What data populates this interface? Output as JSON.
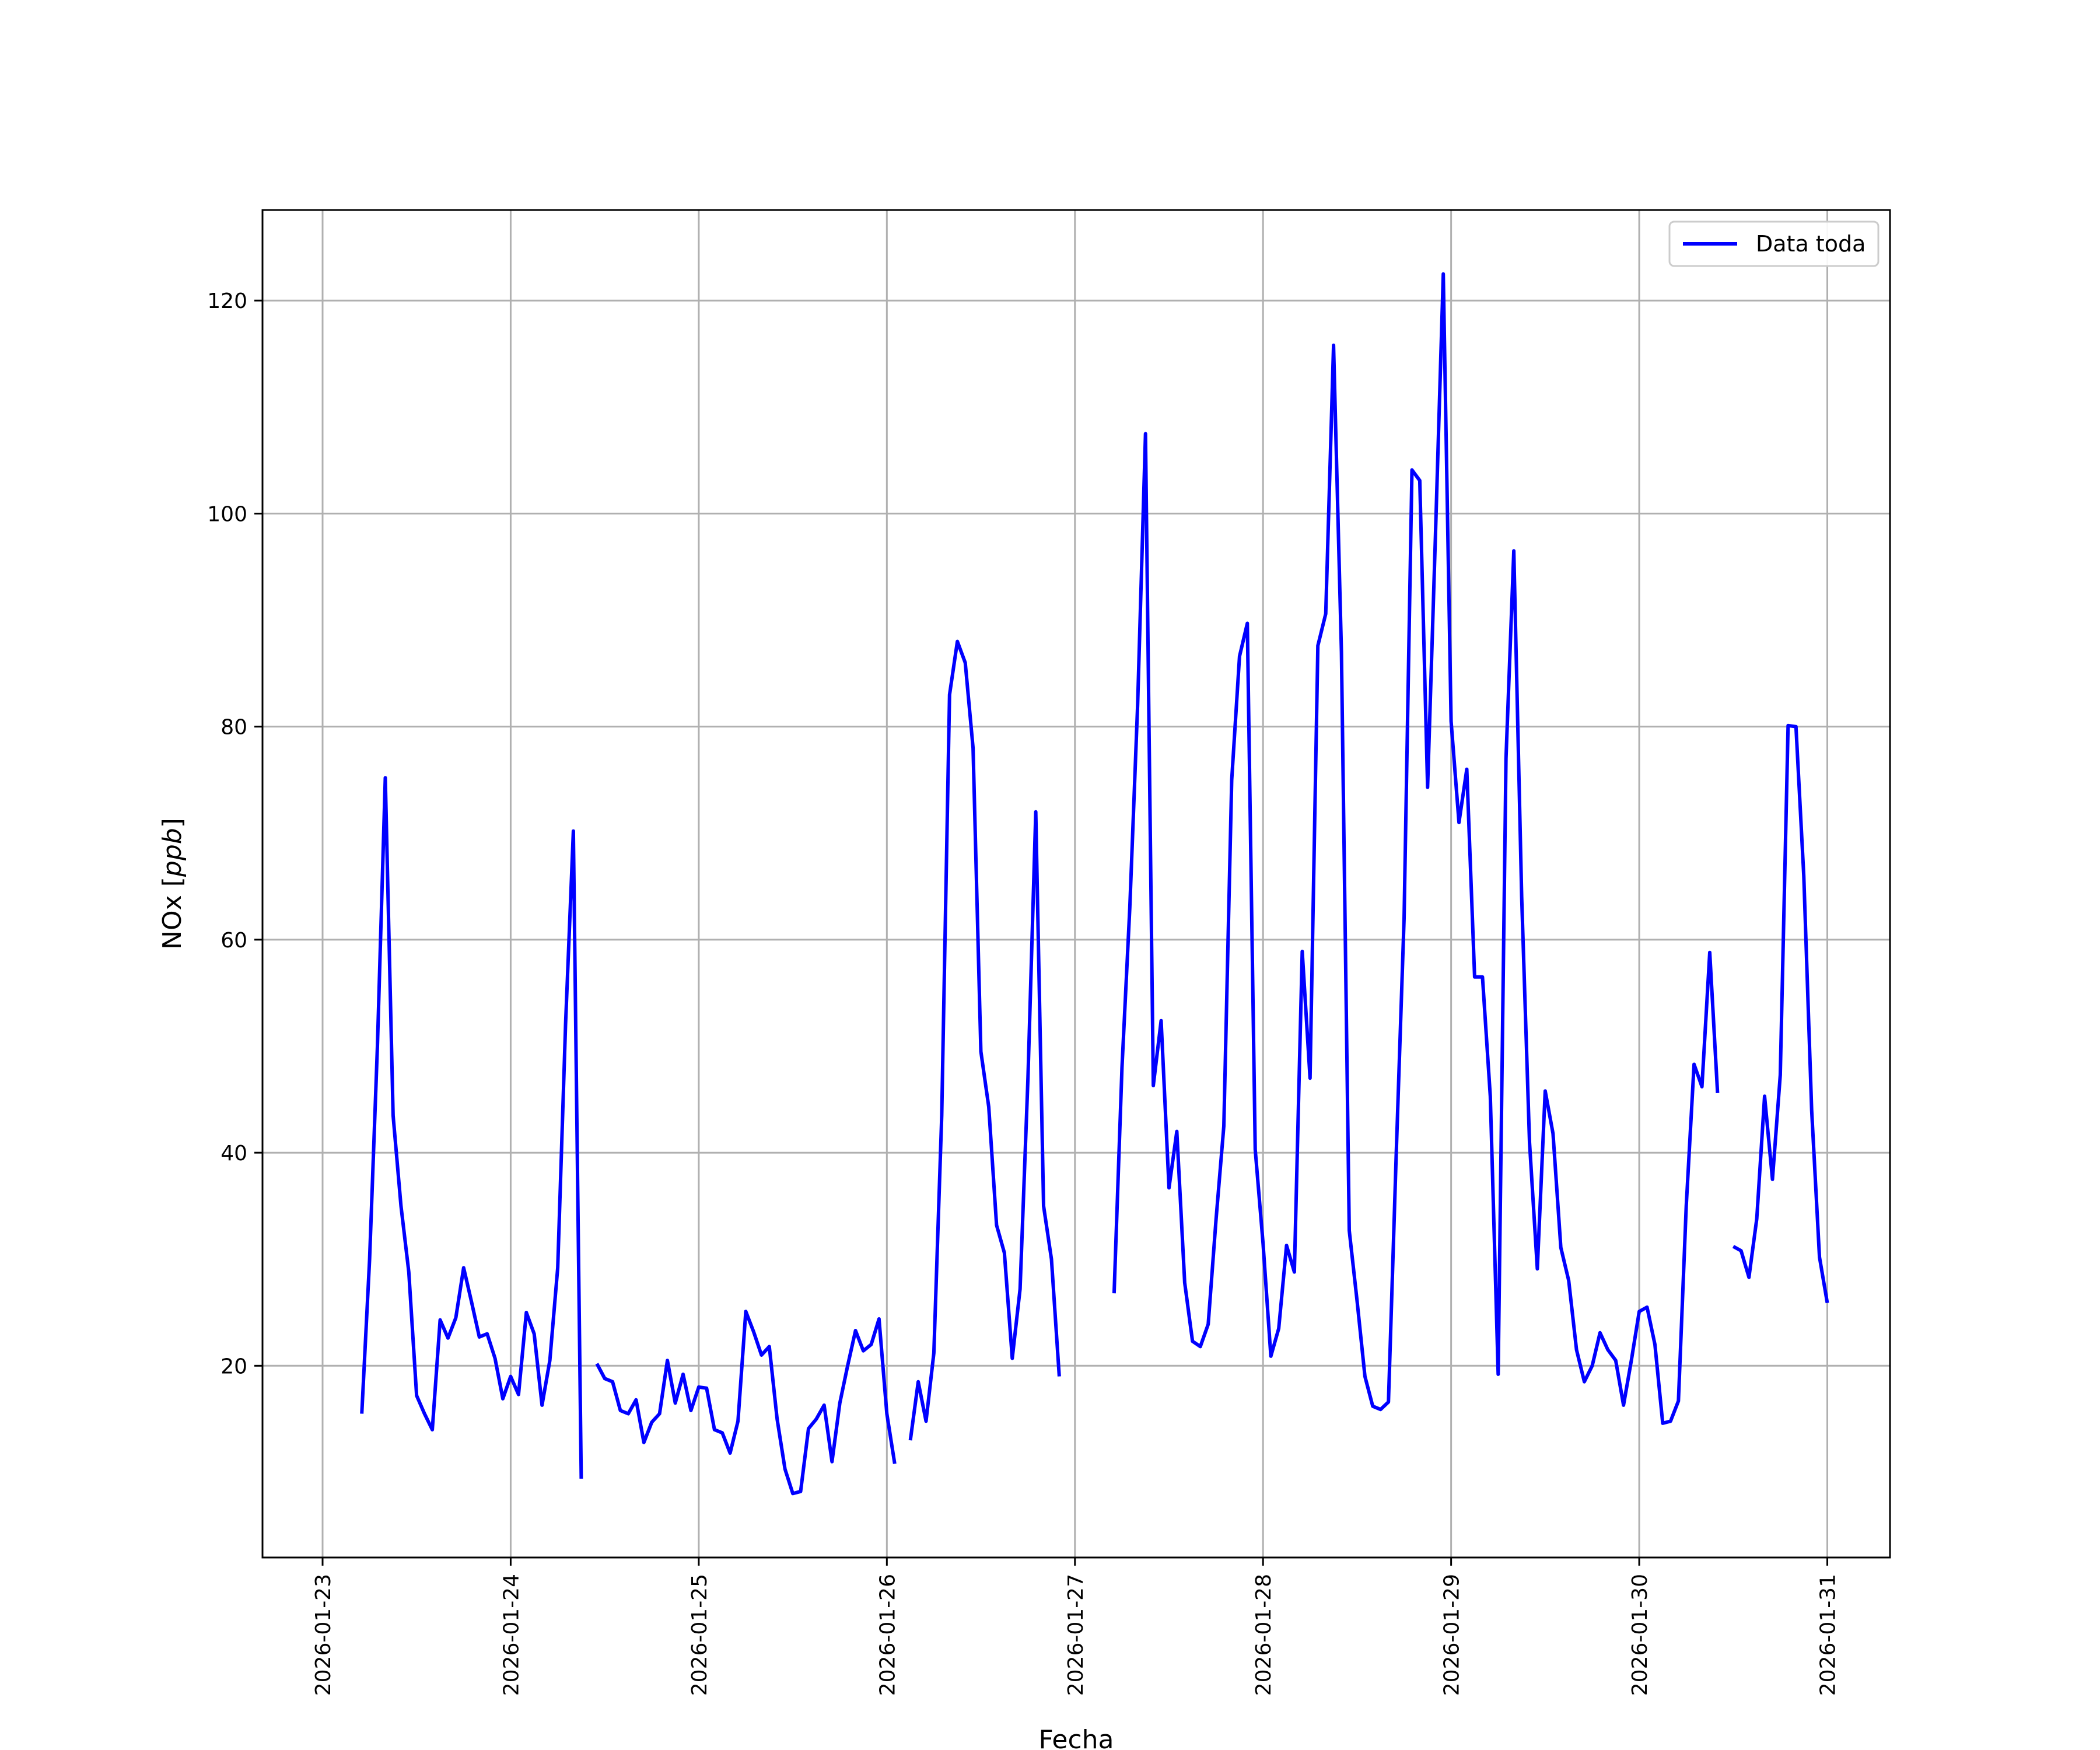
{
  "chart_data": {
    "type": "line",
    "title": "",
    "xlabel": "Fecha",
    "ylabel": "NOx [ppb]",
    "ylabel_parts": {
      "text": "NOx ",
      "bracket_open": "[",
      "unit": "ppb",
      "bracket_close": "]"
    },
    "x_type": "datetime",
    "xlim": [
      "2026-01-22 16:20",
      "2026-01-31 08:00"
    ],
    "ylim": [
      2,
      128.5
    ],
    "x_ticks": [
      "2026-01-23",
      "2026-01-24",
      "2026-01-25",
      "2026-01-26",
      "2026-01-27",
      "2026-01-28",
      "2026-01-29",
      "2026-01-30",
      "2026-01-31"
    ],
    "y_ticks": [
      20,
      40,
      60,
      80,
      100,
      120
    ],
    "grid": true,
    "legend_position": "upper right",
    "series": [
      {
        "name": "Data toda",
        "color": "#0000ff",
        "segments": [
          [
            [
              "2026-01-23 05:00",
              15.5
            ],
            [
              "2026-01-23 06:00",
              30
            ],
            [
              "2026-01-23 07:00",
              50
            ],
            [
              "2026-01-23 08:00",
              75.2
            ],
            [
              "2026-01-23 09:00",
              43.5
            ],
            [
              "2026-01-23 10:00",
              35
            ],
            [
              "2026-01-23 11:00",
              28.8
            ],
            [
              "2026-01-23 12:00",
              17.2
            ],
            [
              "2026-01-23 13:00",
              15.5
            ],
            [
              "2026-01-23 14:00",
              14
            ],
            [
              "2026-01-23 15:00",
              24.3
            ],
            [
              "2026-01-23 16:00",
              22.6
            ],
            [
              "2026-01-23 17:00",
              24.5
            ],
            [
              "2026-01-23 18:00",
              29.2
            ],
            [
              "2026-01-23 19:00",
              26
            ],
            [
              "2026-01-23 20:00",
              22.7
            ],
            [
              "2026-01-23 21:00",
              23
            ],
            [
              "2026-01-23 22:00",
              20.7
            ],
            [
              "2026-01-23 23:00",
              16.9
            ],
            [
              "2026-01-24 00:00",
              19
            ],
            [
              "2026-01-24 01:00",
              17.3
            ],
            [
              "2026-01-24 02:00",
              25
            ],
            [
              "2026-01-24 03:00",
              23
            ],
            [
              "2026-01-24 04:00",
              16.3
            ],
            [
              "2026-01-24 05:00",
              20.5
            ],
            [
              "2026-01-24 06:00",
              29.2
            ],
            [
              "2026-01-24 07:00",
              52
            ],
            [
              "2026-01-24 08:00",
              70.2
            ],
            [
              "2026-01-24 09:00",
              9.4
            ]
          ],
          [
            [
              "2026-01-24 11:00",
              20.2
            ],
            [
              "2026-01-24 12:00",
              18.8
            ],
            [
              "2026-01-24 13:00",
              18.5
            ],
            [
              "2026-01-24 14:00",
              15.8
            ],
            [
              "2026-01-24 15:00",
              15.5
            ],
            [
              "2026-01-24 16:00",
              16.8
            ],
            [
              "2026-01-24 17:00",
              12.8
            ],
            [
              "2026-01-24 18:00",
              14.7
            ],
            [
              "2026-01-24 19:00",
              15.5
            ],
            [
              "2026-01-24 20:00",
              20.5
            ],
            [
              "2026-01-24 21:00",
              16.5
            ],
            [
              "2026-01-24 22:00",
              19.2
            ],
            [
              "2026-01-24 23:00",
              15.8
            ],
            [
              "2026-01-25 00:00",
              18
            ],
            [
              "2026-01-25 01:00",
              17.9
            ],
            [
              "2026-01-25 02:00",
              14
            ],
            [
              "2026-01-25 03:00",
              13.7
            ],
            [
              "2026-01-25 04:00",
              11.8
            ],
            [
              "2026-01-25 05:00",
              14.8
            ],
            [
              "2026-01-25 06:00",
              25.1
            ],
            [
              "2026-01-25 07:00",
              23.2
            ],
            [
              "2026-01-25 08:00",
              21
            ],
            [
              "2026-01-25 09:00",
              21.8
            ],
            [
              "2026-01-25 10:00",
              15
            ],
            [
              "2026-01-25 11:00",
              10.3
            ],
            [
              "2026-01-25 12:00",
              8
            ],
            [
              "2026-01-25 13:00",
              8.2
            ],
            [
              "2026-01-25 14:00",
              14.1
            ],
            [
              "2026-01-25 15:00",
              15
            ],
            [
              "2026-01-25 16:00",
              16.3
            ],
            [
              "2026-01-25 17:00",
              11
            ],
            [
              "2026-01-25 18:00",
              16.5
            ],
            [
              "2026-01-25 19:00",
              20
            ],
            [
              "2026-01-25 20:00",
              23.3
            ],
            [
              "2026-01-25 21:00",
              21.4
            ],
            [
              "2026-01-25 22:00",
              22
            ],
            [
              "2026-01-25 23:00",
              24.4
            ],
            [
              "2026-01-26 00:00",
              15.5
            ],
            [
              "2026-01-26 01:00",
              10.8
            ]
          ],
          [
            [
              "2026-01-26 03:00",
              13
            ],
            [
              "2026-01-26 04:00",
              18.5
            ],
            [
              "2026-01-26 05:00",
              14.8
            ],
            [
              "2026-01-26 06:00",
              21.2
            ],
            [
              "2026-01-26 07:00",
              43.5
            ],
            [
              "2026-01-26 08:00",
              83
            ],
            [
              "2026-01-26 09:00",
              88
            ],
            [
              "2026-01-26 10:00",
              86
            ],
            [
              "2026-01-26 11:00",
              78
            ],
            [
              "2026-01-26 12:00",
              49.5
            ],
            [
              "2026-01-26 13:00",
              44.3
            ],
            [
              "2026-01-26 14:00",
              33.2
            ],
            [
              "2026-01-26 15:00",
              30.6
            ],
            [
              "2026-01-26 16:00",
              20.7
            ],
            [
              "2026-01-26 17:00",
              27.2
            ],
            [
              "2026-01-26 18:00",
              47
            ],
            [
              "2026-01-26 19:00",
              72
            ],
            [
              "2026-01-26 20:00",
              35
            ],
            [
              "2026-01-26 21:00",
              30
            ],
            [
              "2026-01-26 22:00",
              19
            ]
          ],
          [
            [
              "2026-01-27 05:00",
              26.8
            ],
            [
              "2026-01-27 06:00",
              48
            ],
            [
              "2026-01-27 07:00",
              63
            ],
            [
              "2026-01-27 08:00",
              82
            ],
            [
              "2026-01-27 09:00",
              107.5
            ],
            [
              "2026-01-27 10:00",
              46.3
            ],
            [
              "2026-01-27 11:00",
              52.4
            ],
            [
              "2026-01-27 12:00",
              36.7
            ],
            [
              "2026-01-27 13:00",
              42
            ],
            [
              "2026-01-27 14:00",
              27.8
            ],
            [
              "2026-01-27 15:00",
              22.3
            ],
            [
              "2026-01-27 16:00",
              21.8
            ],
            [
              "2026-01-27 17:00",
              23.9
            ],
            [
              "2026-01-27 18:00",
              33.7
            ],
            [
              "2026-01-27 19:00",
              42.5
            ],
            [
              "2026-01-27 20:00",
              75
            ],
            [
              "2026-01-27 21:00",
              86.6
            ],
            [
              "2026-01-27 22:00",
              89.7
            ],
            [
              "2026-01-27 23:00",
              40.3
            ],
            [
              "2026-01-28 00:00",
              31.5
            ],
            [
              "2026-01-28 01:00",
              20.9
            ],
            [
              "2026-01-28 02:00",
              23.5
            ],
            [
              "2026-01-28 03:00",
              31.3
            ],
            [
              "2026-01-28 04:00",
              28.8
            ],
            [
              "2026-01-28 05:00",
              58.9
            ],
            [
              "2026-01-28 06:00",
              47
            ],
            [
              "2026-01-28 07:00",
              87.6
            ],
            [
              "2026-01-28 08:00",
              90.6
            ],
            [
              "2026-01-28 09:00",
              115.8
            ],
            [
              "2026-01-28 10:00",
              87
            ],
            [
              "2026-01-28 11:00",
              32.7
            ],
            [
              "2026-01-28 12:00",
              26.1
            ],
            [
              "2026-01-28 13:00",
              19
            ],
            [
              "2026-01-28 14:00",
              16.2
            ],
            [
              "2026-01-28 15:00",
              15.9
            ],
            [
              "2026-01-28 16:00",
              16.6
            ],
            [
              "2026-01-28 17:00",
              40
            ],
            [
              "2026-01-28 18:00",
              62
            ],
            [
              "2026-01-28 19:00",
              104.1
            ],
            [
              "2026-01-28 20:00",
              103.1
            ],
            [
              "2026-01-28 21:00",
              74.3
            ],
            [
              "2026-01-28 22:00",
              98
            ],
            [
              "2026-01-28 23:00",
              122.5
            ],
            [
              "2026-01-29 00:00",
              80.5
            ],
            [
              "2026-01-29 01:00",
              71
            ],
            [
              "2026-01-29 02:00",
              76
            ],
            [
              "2026-01-29 03:00",
              56.5
            ],
            [
              "2026-01-29 04:00",
              56.5
            ],
            [
              "2026-01-29 05:00",
              45.3
            ],
            [
              "2026-01-29 06:00",
              19.2
            ],
            [
              "2026-01-29 07:00",
              77
            ],
            [
              "2026-01-29 08:00",
              96.5
            ],
            [
              "2026-01-29 09:00",
              64
            ],
            [
              "2026-01-29 10:00",
              41
            ],
            [
              "2026-01-29 11:00",
              29.1
            ],
            [
              "2026-01-29 12:00",
              45.8
            ],
            [
              "2026-01-29 13:00",
              41.8
            ],
            [
              "2026-01-29 14:00",
              31.1
            ],
            [
              "2026-01-29 15:00",
              28
            ],
            [
              "2026-01-29 16:00",
              21.5
            ],
            [
              "2026-01-29 17:00",
              18.5
            ],
            [
              "2026-01-29 18:00",
              20
            ],
            [
              "2026-01-29 19:00",
              23.1
            ],
            [
              "2026-01-29 20:00",
              21.5
            ],
            [
              "2026-01-29 21:00",
              20.5
            ],
            [
              "2026-01-29 22:00",
              16.3
            ],
            [
              "2026-01-29 23:00",
              20.5
            ],
            [
              "2026-01-30 00:00",
              25.1
            ],
            [
              "2026-01-30 01:00",
              25.5
            ],
            [
              "2026-01-30 02:00",
              22
            ],
            [
              "2026-01-30 03:00",
              14.6
            ],
            [
              "2026-01-30 04:00",
              14.8
            ],
            [
              "2026-01-30 05:00",
              16.7
            ],
            [
              "2026-01-30 06:00",
              35
            ],
            [
              "2026-01-30 07:00",
              48.3
            ],
            [
              "2026-01-30 08:00",
              46.2
            ],
            [
              "2026-01-30 09:00",
              58.8
            ],
            [
              "2026-01-30 10:00",
              45.6
            ]
          ],
          [
            [
              "2026-01-30 12:00",
              31.2
            ],
            [
              "2026-01-30 13:00",
              30.8
            ],
            [
              "2026-01-30 14:00",
              28.3
            ],
            [
              "2026-01-30 15:00",
              33.8
            ],
            [
              "2026-01-30 16:00",
              45.3
            ],
            [
              "2026-01-30 17:00",
              37.5
            ],
            [
              "2026-01-30 18:00",
              47.3
            ],
            [
              "2026-01-30 19:00",
              80.1
            ],
            [
              "2026-01-30 20:00",
              80
            ],
            [
              "2026-01-30 21:00",
              66
            ],
            [
              "2026-01-30 22:00",
              44
            ],
            [
              "2026-01-30 23:00",
              30.2
            ],
            [
              "2026-01-31 00:00",
              25.9
            ]
          ]
        ]
      }
    ]
  }
}
